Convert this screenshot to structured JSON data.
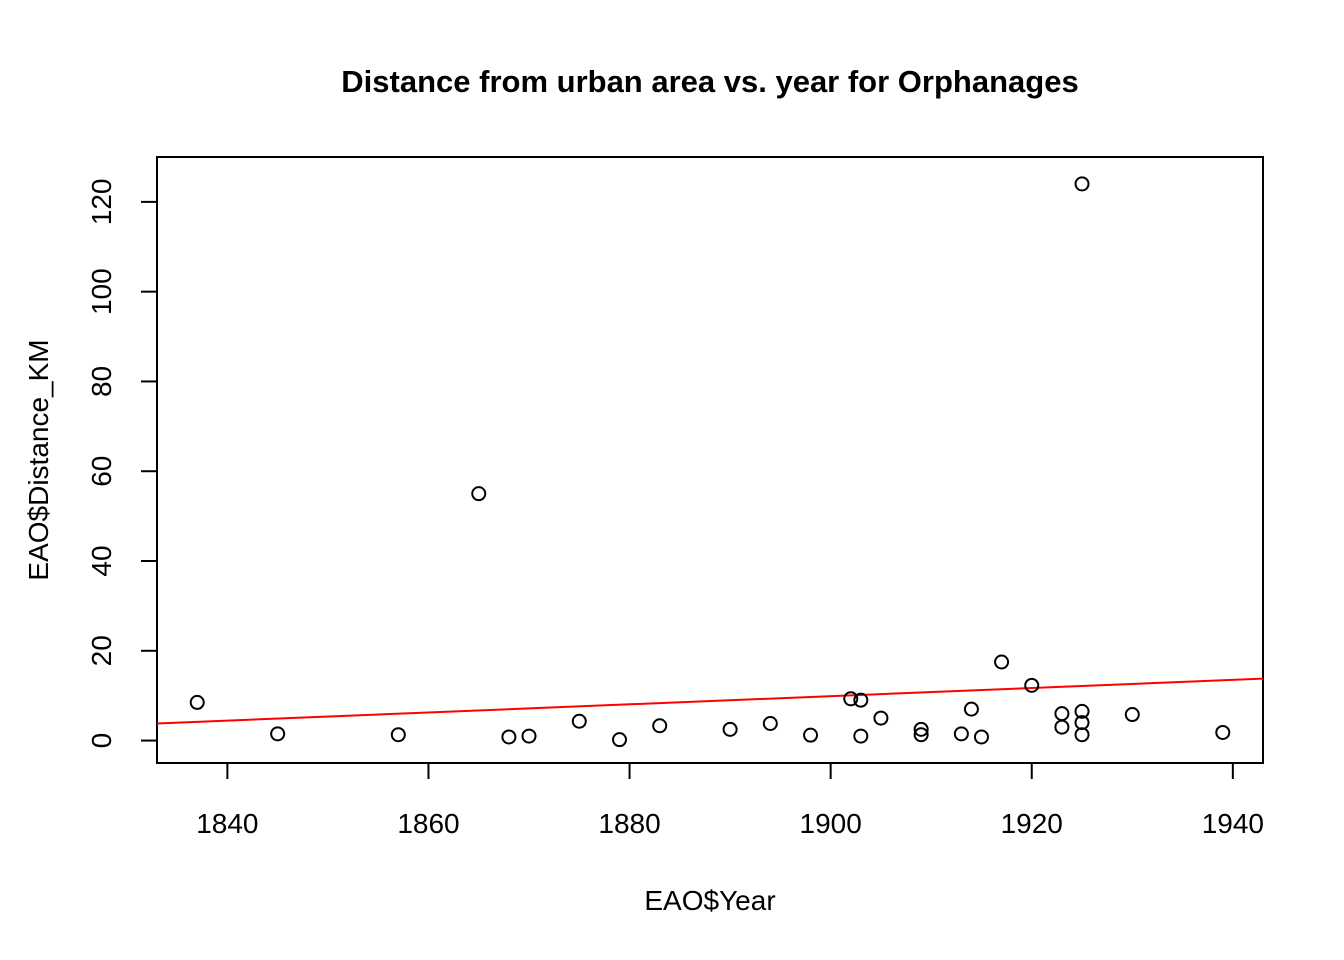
{
  "chart_data": {
    "type": "scatter",
    "title": "Distance from urban area vs. year for Orphanages",
    "xlabel": "EAO$Year",
    "ylabel": "EAO$Distance_KM",
    "xlim": [
      1833,
      1943
    ],
    "ylim": [
      -5,
      130
    ],
    "x_ticks": [
      1840,
      1860,
      1880,
      1900,
      1920,
      1940
    ],
    "y_ticks": [
      0,
      20,
      40,
      60,
      80,
      100,
      120
    ],
    "x_tick_labels": [
      "1840",
      "1860",
      "1880",
      "1900",
      "1920",
      "1940"
    ],
    "y_tick_labels": [
      "0",
      "20",
      "40",
      "60",
      "80",
      "100",
      "120"
    ],
    "grid": false,
    "point_style": "open-circle",
    "point_color": "#000000",
    "points": [
      {
        "x": 1837,
        "y": 8.5
      },
      {
        "x": 1845,
        "y": 1.5
      },
      {
        "x": 1857,
        "y": 1.3
      },
      {
        "x": 1865,
        "y": 55
      },
      {
        "x": 1868,
        "y": 0.8
      },
      {
        "x": 1870,
        "y": 1.0
      },
      {
        "x": 1875,
        "y": 4.3
      },
      {
        "x": 1879,
        "y": 0.2
      },
      {
        "x": 1883,
        "y": 3.3
      },
      {
        "x": 1890,
        "y": 2.5
      },
      {
        "x": 1894,
        "y": 3.8
      },
      {
        "x": 1898,
        "y": 1.2
      },
      {
        "x": 1902,
        "y": 9.3
      },
      {
        "x": 1903,
        "y": 9.0
      },
      {
        "x": 1903,
        "y": 1.0
      },
      {
        "x": 1905,
        "y": 5.0
      },
      {
        "x": 1909,
        "y": 2.5
      },
      {
        "x": 1909,
        "y": 1.3
      },
      {
        "x": 1913,
        "y": 1.5
      },
      {
        "x": 1914,
        "y": 7.0
      },
      {
        "x": 1915,
        "y": 0.8
      },
      {
        "x": 1917,
        "y": 17.5
      },
      {
        "x": 1920,
        "y": 12.3
      },
      {
        "x": 1923,
        "y": 6.0
      },
      {
        "x": 1923,
        "y": 3.0
      },
      {
        "x": 1925,
        "y": 124
      },
      {
        "x": 1925,
        "y": 6.5
      },
      {
        "x": 1925,
        "y": 4.0
      },
      {
        "x": 1925,
        "y": 1.3
      },
      {
        "x": 1930,
        "y": 5.8
      },
      {
        "x": 1939,
        "y": 1.8
      }
    ],
    "fit_line": {
      "color": "#ff0000",
      "x0": 1833,
      "y0": 3.8,
      "x1": 1943,
      "y1": 13.8
    }
  }
}
